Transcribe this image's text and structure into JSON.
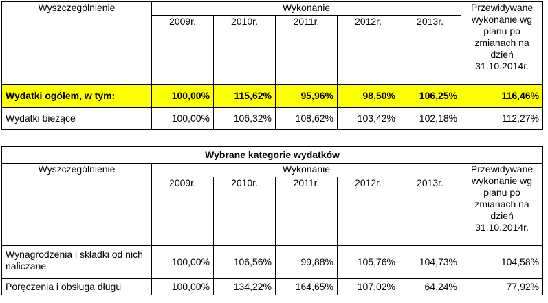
{
  "table1": {
    "header": {
      "col_desc": "Wyszczególnienie",
      "col_group": "Wykonanie",
      "col_forecast": "Przewidywane wykonanie wg planu po zmianach na dzień 31.10.2014r.",
      "years": [
        "2009r.",
        "2010r.",
        "2011r.",
        "2012r.",
        "2013r."
      ]
    },
    "rows": [
      {
        "label": "Wydatki ogółem, w tym:",
        "values": [
          "100,00%",
          "115,62%",
          "95,96%",
          "98,50%",
          "106,25%",
          "116,46%"
        ],
        "highlight": true
      },
      {
        "label": "Wydatki bieżące",
        "values": [
          "100,00%",
          "106,32%",
          "108,62%",
          "103,42%",
          "102,18%",
          "112,27%"
        ],
        "highlight": false
      }
    ]
  },
  "table2": {
    "title": "Wybrane kategorie wydatków",
    "header": {
      "col_desc": "Wyszczególnienie",
      "col_group": "Wykonanie",
      "col_forecast": "Przewidywane wykonanie wg planu po zmianach na dzień 31.10.2014r.",
      "years": [
        "2009r.",
        "2010r.",
        "2011r.",
        "2012r.",
        "2013r."
      ]
    },
    "rows": [
      {
        "label": "Wynagrodzenia i składki od nich naliczane",
        "values": [
          "100,00%",
          "106,56%",
          "99,88%",
          "105,76%",
          "104,73%",
          "104,58%"
        ]
      },
      {
        "label": "Poręczenia i obsługa długu",
        "values": [
          "100,00%",
          "134,22%",
          "164,65%",
          "107,02%",
          "64,24%",
          "77,92%"
        ]
      }
    ]
  },
  "colors": {
    "highlight": "#ffff00",
    "border": "#000000"
  }
}
